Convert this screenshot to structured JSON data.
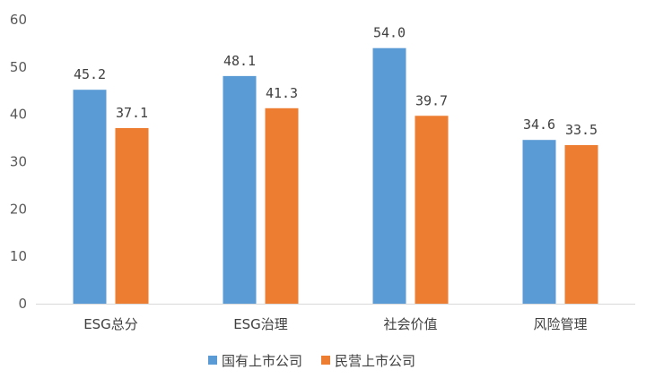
{
  "chart_data": {
    "type": "bar",
    "categories": [
      "ESG总分",
      "ESG治理",
      "社会价值",
      "风险管理"
    ],
    "series": [
      {
        "name": "国有上市公司",
        "values": [
          45.2,
          48.1,
          54.0,
          34.6
        ],
        "color": "#5B9BD5"
      },
      {
        "name": "民营上市公司",
        "values": [
          37.1,
          41.3,
          39.7,
          33.5
        ],
        "color": "#ED7D31"
      }
    ],
    "ylim": [
      0,
      60
    ],
    "yticks": [
      0,
      10,
      20,
      30,
      40,
      50,
      60
    ],
    "data_labels": [
      [
        "45.2",
        "48.1",
        "54.0",
        "34.6"
      ],
      [
        "37.1",
        "41.3",
        "39.7",
        "33.5"
      ]
    ],
    "grid": false,
    "legend_position": "bottom"
  }
}
